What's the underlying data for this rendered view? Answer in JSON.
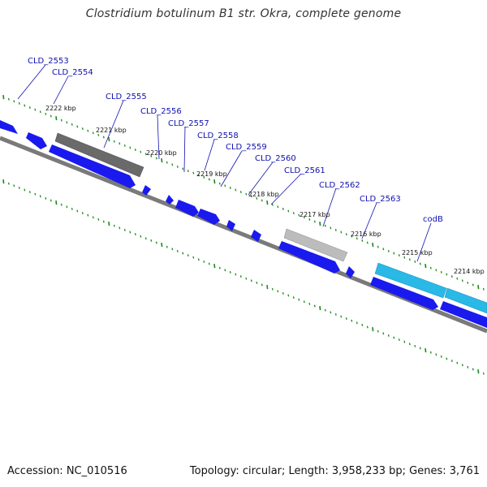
{
  "title": "Clostridium botulinum B1 str. Okra, complete genome",
  "footer": {
    "accession": "Accession: NC_010516",
    "summary": "Topology: circular; Length: 3,958,233 bp; Genes: 3,761"
  },
  "colors": {
    "forward_gene": "#1a1aee",
    "highlight_gene": "#2ab8e6",
    "gray_gene": "#6a6a6a",
    "light_gray_gene": "#bcbcbc",
    "backbone": "#7a7a7a",
    "tick": "#1a8a1a",
    "label": "#1010b0"
  },
  "gene_labels": [
    {
      "name": "CLD_2553",
      "label": "CLD_2553"
    },
    {
      "name": "CLD_2554",
      "label": "CLD_2554"
    },
    {
      "name": "CLD_2555",
      "label": "CLD_2555"
    },
    {
      "name": "CLD_2556",
      "label": "CLD_2556"
    },
    {
      "name": "CLD_2557",
      "label": "CLD_2557"
    },
    {
      "name": "CLD_2558",
      "label": "CLD_2558"
    },
    {
      "name": "CLD_2559",
      "label": "CLD_2559"
    },
    {
      "name": "CLD_2560",
      "label": "CLD_2560"
    },
    {
      "name": "CLD_2561",
      "label": "CLD_2561"
    },
    {
      "name": "CLD_2562",
      "label": "CLD_2562"
    },
    {
      "name": "CLD_2563",
      "label": "CLD_2563"
    },
    {
      "name": "codB",
      "label": "codB"
    }
  ],
  "position_ticks": [
    "2222 kbp",
    "2221 kbp",
    "2220 kbp",
    "2219 kbp",
    "2218 kbp",
    "2217 kbp",
    "2216 kbp",
    "2215 kbp",
    "2214 kbp"
  ]
}
